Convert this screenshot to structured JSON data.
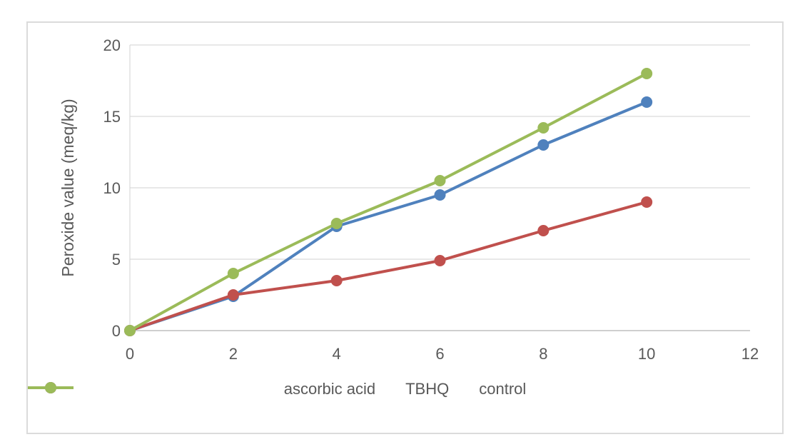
{
  "chart_data": {
    "type": "line",
    "title": "",
    "xlabel": "",
    "ylabel": "Peroxide value (meq/kg)",
    "x": [
      0,
      2,
      4,
      6,
      8,
      10
    ],
    "series": [
      {
        "name": "ascorbic acid",
        "color": "#4F81BD",
        "values": [
          0,
          2.4,
          7.3,
          9.5,
          13,
          16
        ]
      },
      {
        "name": "TBHQ",
        "color": "#C0504D",
        "values": [
          0,
          2.5,
          3.5,
          4.9,
          7,
          9
        ]
      },
      {
        "name": "control",
        "color": "#9BBB59",
        "values": [
          0,
          4,
          7.5,
          10.5,
          14.2,
          18
        ]
      }
    ],
    "xlim": [
      0,
      12
    ],
    "ylim": [
      0,
      20
    ],
    "xticks": [
      0,
      2,
      4,
      6,
      8,
      10,
      12
    ],
    "yticks": [
      0,
      5,
      10,
      15,
      20
    ],
    "grid": "horizontal",
    "legend_position": "bottom",
    "marker": "circle",
    "colors": {
      "grid": "#D9D9D9",
      "axis": "#BFBFBF",
      "text": "#595959",
      "frame": "#DBDBDB",
      "background": "#FFFFFF"
    }
  }
}
